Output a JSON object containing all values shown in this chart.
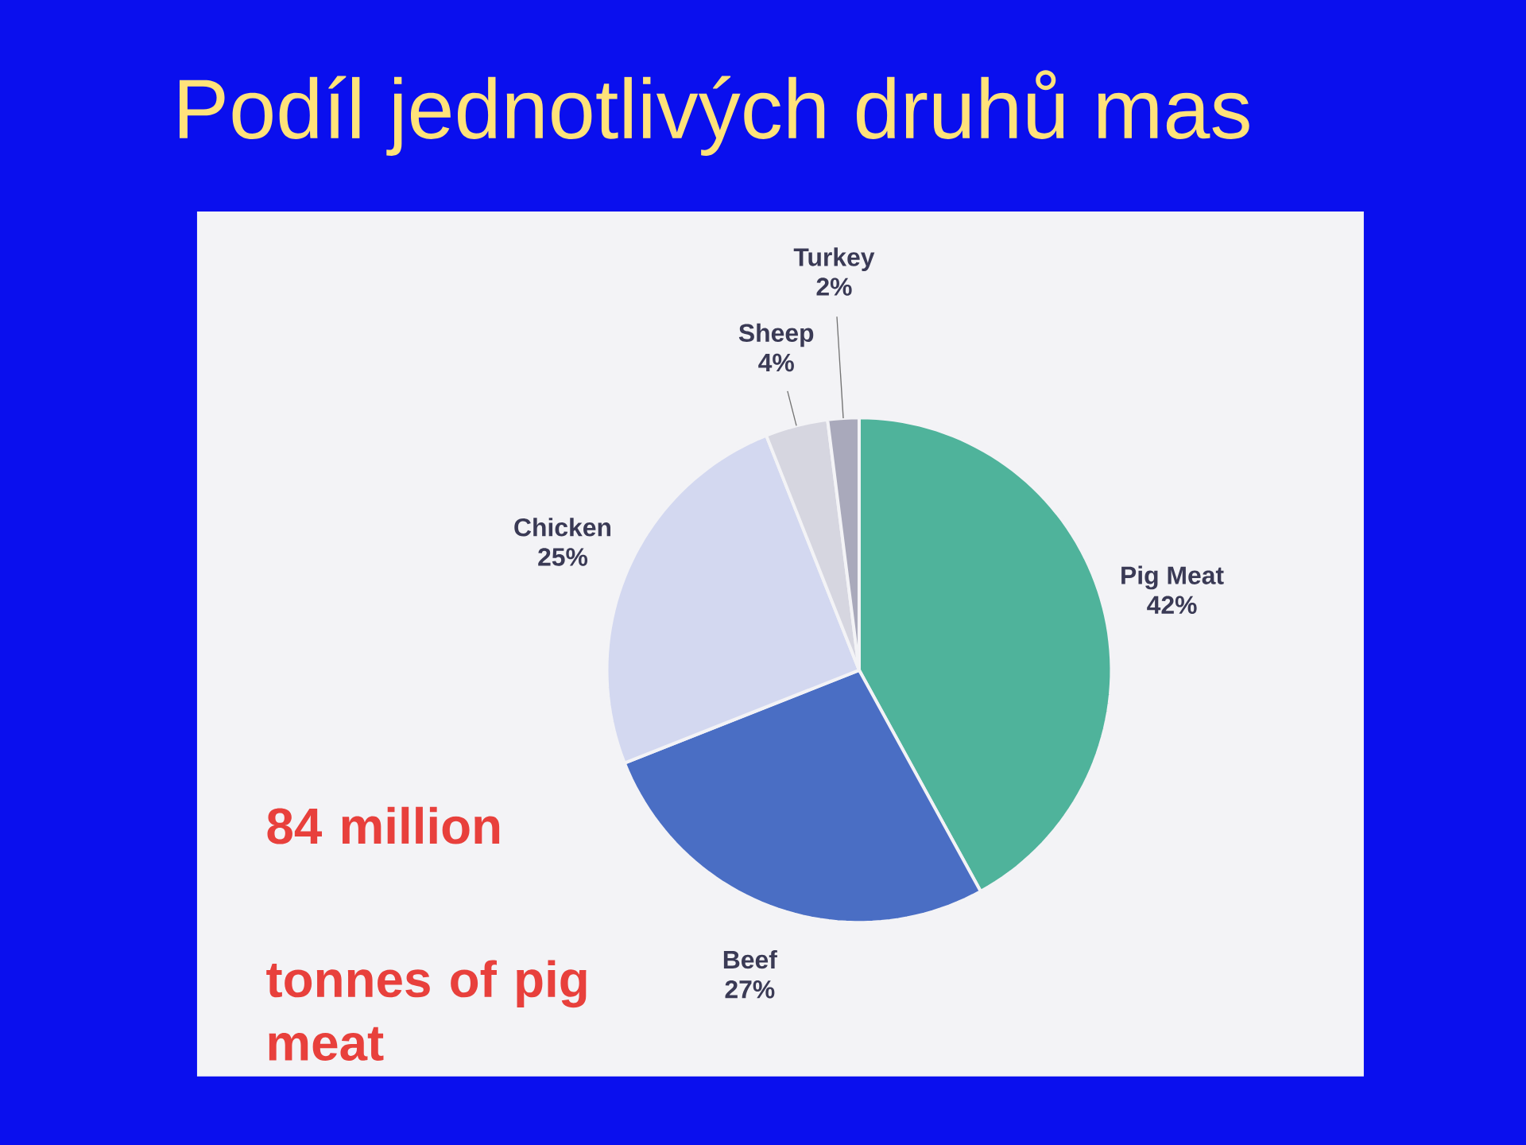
{
  "chart_data": {
    "type": "pie",
    "title": "Podíl jednotlivých druhů mas",
    "categories": [
      "Pig Meat",
      "Beef",
      "Chicken",
      "Sheep",
      "Turkey"
    ],
    "values": [
      42,
      27,
      25,
      4,
      2
    ],
    "value_labels": [
      "42%",
      "27%",
      "25%",
      "4%",
      "2%"
    ],
    "colors": [
      "#4fb39b",
      "#4a6ec4",
      "#d3d8f0",
      "#d6d6e0",
      "#a9a9bb"
    ],
    "annotations": [
      "84 million",
      "tonnes of pig meat"
    ]
  }
}
